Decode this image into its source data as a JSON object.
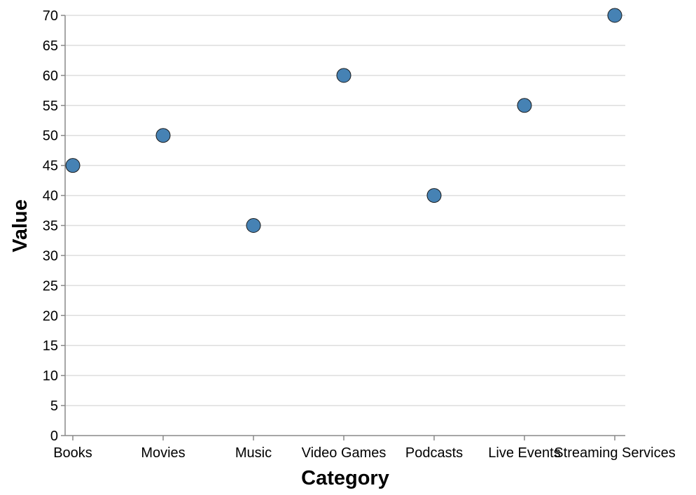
{
  "chart_data": {
    "type": "scatter",
    "title": "",
    "xlabel": "Category",
    "ylabel": "Value",
    "categories": [
      "Books",
      "Movies",
      "Music",
      "Video Games",
      "Podcasts",
      "Live Events",
      "Streaming Services"
    ],
    "values": [
      45,
      50,
      35,
      60,
      40,
      55,
      70
    ],
    "ylim": [
      0,
      70
    ],
    "yticks": [
      0,
      5,
      10,
      15,
      20,
      25,
      30,
      35,
      40,
      45,
      50,
      55,
      60,
      65,
      70
    ],
    "grid": true,
    "legend": "none",
    "point_color": "#4682b4"
  }
}
